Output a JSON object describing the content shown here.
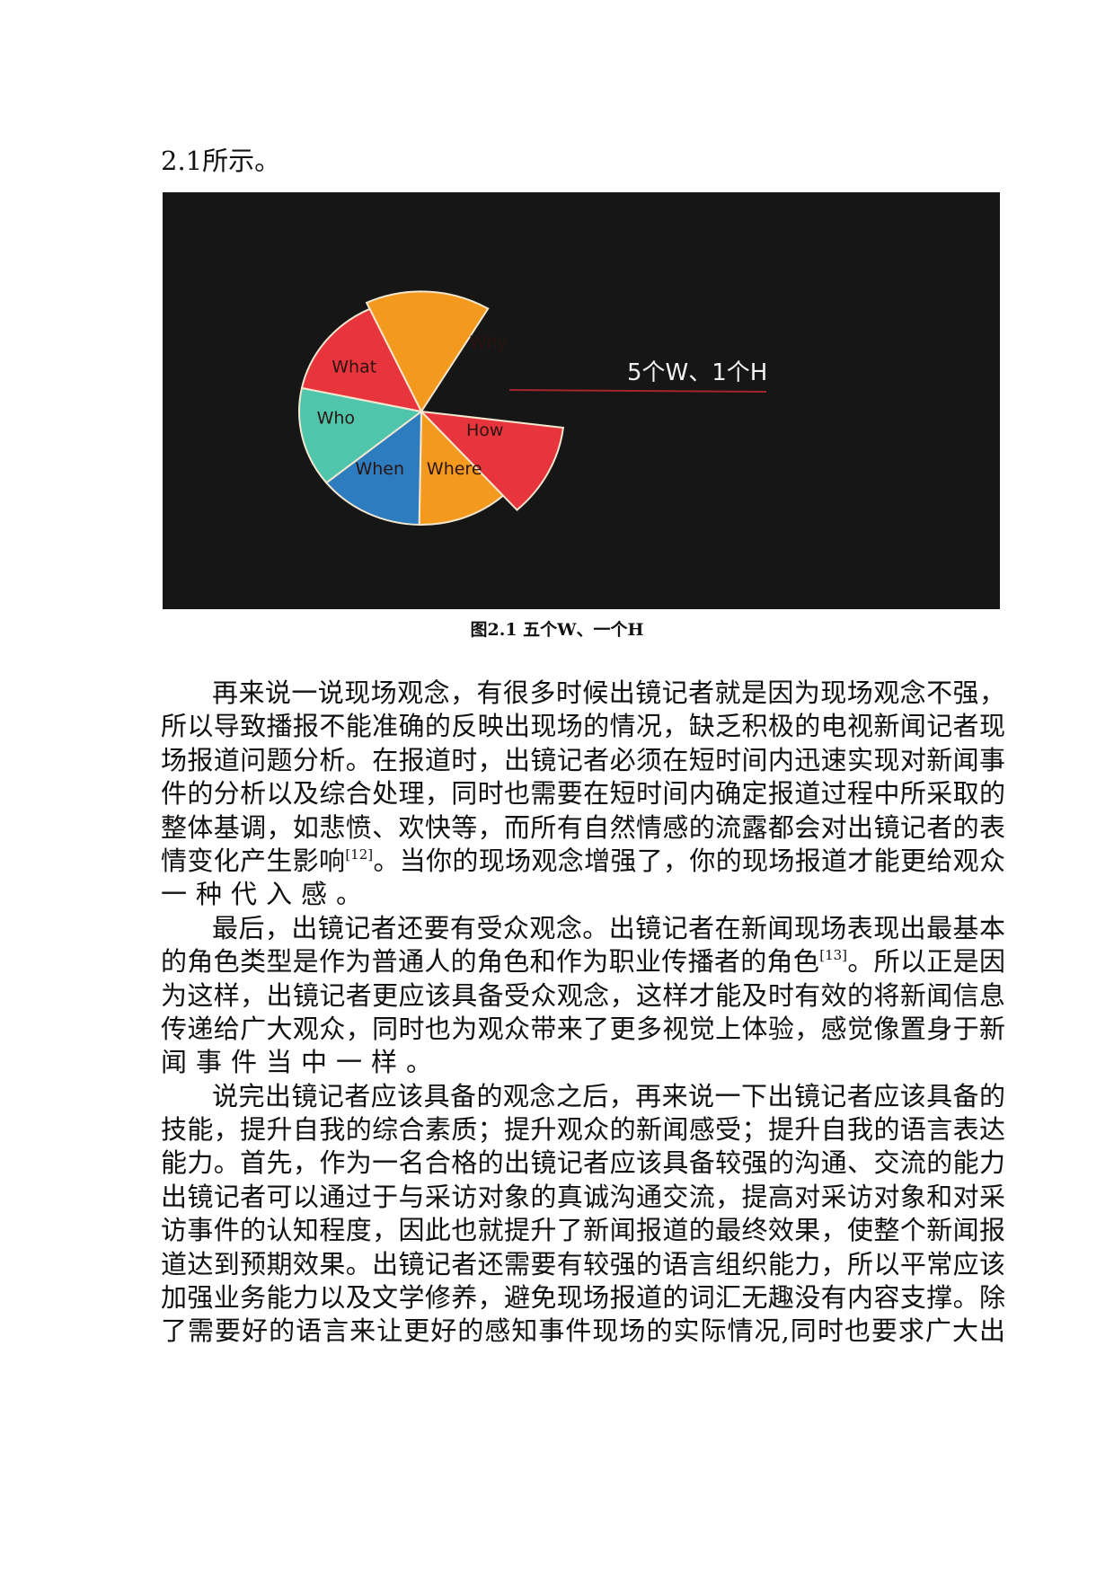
{
  "lead_text": "2.1所示。",
  "figure": {
    "title_text": "5个W、1个H",
    "background": "#161616",
    "line_color": "#a3262e",
    "slices": [
      {
        "label": "Why",
        "color": "#f39a1e"
      },
      {
        "label": "How",
        "color": "#e8343c"
      },
      {
        "label": "Where",
        "color": "#f39a1e"
      },
      {
        "label": "When",
        "color": "#2e7cc0"
      },
      {
        "label": "Who",
        "color": "#4fc6ac"
      },
      {
        "label": "What",
        "color": "#e8343c"
      }
    ]
  },
  "caption": "图2.1 五个W、一个H",
  "paragraphs": [
    {
      "lines": [
        "再来说一说现场观念，有很多时候出镜记者就是因为现场观念不强，",
        "所以导致播报不能准确的反映出现场的情况，缺乏积极的电视新闻记者现",
        "场报道问题分析。在报道时，出镜记者必须在短时间内迅速实现对新闻事",
        "件的分析以及综合处理，同时也需要在短时间内确定报道过程中所采取的",
        "整体基调，如悲愤、欢快等，而所有自然情感的流露都会对出镜记者的表",
        {
          "pre": "情变化产生影响",
          "sup": "[12]",
          "post": "。当你的现场观念增强了，你的现场报道才能更给观众"
        },
        "一种代入感。"
      ]
    },
    {
      "lines": [
        "最后，出镜记者还要有受众观念。出镜记者在新闻现场表现出最基本",
        {
          "pre": "的角色类型是作为普通人的角色和作为职业传播者的角色",
          "sup": "[13]",
          "post": "。所以正是因"
        },
        "为这样，出镜记者更应该具备受众观念，这样才能及时有效的将新闻信息",
        "传递给广大观众，同时也为观众带来了更多视觉上体验，感觉像置身于新",
        "闻事件当中一样。"
      ]
    },
    {
      "lines": [
        "说完出镜记者应该具备的观念之后，再来说一下出镜记者应该具备的",
        "技能，提升自我的综合素质；提升观众的新闻感受；提升自我的语言表达",
        "能力。首先，作为一名合格的出镜记者应该具备较强的沟通、交流的能力",
        "出镜记者可以通过于与采访对象的真诚沟通交流，提高对采访对象和对采",
        "访事件的认知程度，因此也就提升了新闻报道的最终效果，使整个新闻报",
        "道达到预期效果。出镜记者还需要有较强的语言组织能力，所以平常应该",
        "加强业务能力以及文学修养，避免现场报道的词汇无趣没有内容支撑。除",
        "了需要好的语言来让更好的感知事件现场的实际情况,同时也要求广大出"
      ],
      "continues": true
    }
  ]
}
